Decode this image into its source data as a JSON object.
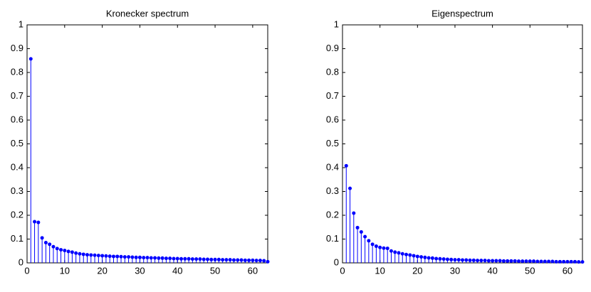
{
  "chart_data": [
    {
      "type": "stem",
      "title": "Kronecker spectrum",
      "color": "#0000ff",
      "x": [
        1,
        2,
        3,
        4,
        5,
        6,
        7,
        8,
        9,
        10,
        11,
        12,
        13,
        14,
        15,
        16,
        17,
        18,
        19,
        20,
        21,
        22,
        23,
        24,
        25,
        26,
        27,
        28,
        29,
        30,
        31,
        32,
        33,
        34,
        35,
        36,
        37,
        38,
        39,
        40,
        41,
        42,
        43,
        44,
        45,
        46,
        47,
        48,
        49,
        50,
        51,
        52,
        53,
        54,
        55,
        56,
        57,
        58,
        59,
        60,
        61,
        62,
        63,
        64
      ],
      "values": [
        0.857,
        0.173,
        0.17,
        0.105,
        0.085,
        0.078,
        0.068,
        0.06,
        0.055,
        0.052,
        0.048,
        0.045,
        0.041,
        0.038,
        0.036,
        0.034,
        0.033,
        0.032,
        0.031,
        0.03,
        0.029,
        0.028,
        0.027,
        0.027,
        0.026,
        0.025,
        0.025,
        0.024,
        0.023,
        0.023,
        0.022,
        0.022,
        0.021,
        0.021,
        0.02,
        0.02,
        0.019,
        0.019,
        0.018,
        0.018,
        0.017,
        0.017,
        0.017,
        0.016,
        0.016,
        0.016,
        0.015,
        0.015,
        0.014,
        0.014,
        0.014,
        0.013,
        0.013,
        0.013,
        0.012,
        0.012,
        0.012,
        0.011,
        0.011,
        0.011,
        0.01,
        0.01,
        0.009,
        0.005
      ],
      "xlim": [
        0,
        64
      ],
      "xticks": [
        0,
        10,
        20,
        30,
        40,
        50,
        60
      ],
      "ylim": [
        0,
        1
      ],
      "yticks": [
        0,
        0.1,
        0.2,
        0.3,
        0.4,
        0.5,
        0.6,
        0.7,
        0.8,
        0.9,
        1
      ],
      "grid": false
    },
    {
      "type": "stem",
      "title": "Eigenspectrum",
      "color": "#0000ff",
      "x": [
        1,
        2,
        3,
        4,
        5,
        6,
        7,
        8,
        9,
        10,
        11,
        12,
        13,
        14,
        15,
        16,
        17,
        18,
        19,
        20,
        21,
        22,
        23,
        24,
        25,
        26,
        27,
        28,
        29,
        30,
        31,
        32,
        33,
        34,
        35,
        36,
        37,
        38,
        39,
        40,
        41,
        42,
        43,
        44,
        45,
        46,
        47,
        48,
        49,
        50,
        51,
        52,
        53,
        54,
        55,
        56,
        57,
        58,
        59,
        60,
        61,
        62,
        63,
        64
      ],
      "values": [
        0.408,
        0.313,
        0.209,
        0.148,
        0.13,
        0.11,
        0.093,
        0.078,
        0.07,
        0.065,
        0.062,
        0.061,
        0.05,
        0.045,
        0.042,
        0.038,
        0.035,
        0.033,
        0.03,
        0.027,
        0.025,
        0.023,
        0.021,
        0.02,
        0.018,
        0.017,
        0.016,
        0.015,
        0.014,
        0.013,
        0.013,
        0.012,
        0.012,
        0.011,
        0.011,
        0.01,
        0.01,
        0.01,
        0.009,
        0.009,
        0.009,
        0.009,
        0.008,
        0.008,
        0.008,
        0.008,
        0.007,
        0.007,
        0.007,
        0.007,
        0.007,
        0.006,
        0.006,
        0.006,
        0.006,
        0.006,
        0.005,
        0.005,
        0.005,
        0.005,
        0.005,
        0.005,
        0.004,
        0.004
      ],
      "xlim": [
        0,
        64
      ],
      "xticks": [
        0,
        10,
        20,
        30,
        40,
        50,
        60
      ],
      "ylim": [
        0,
        1
      ],
      "yticks": [
        0,
        0.1,
        0.2,
        0.3,
        0.4,
        0.5,
        0.6,
        0.7,
        0.8,
        0.9,
        1
      ],
      "grid": false
    }
  ]
}
